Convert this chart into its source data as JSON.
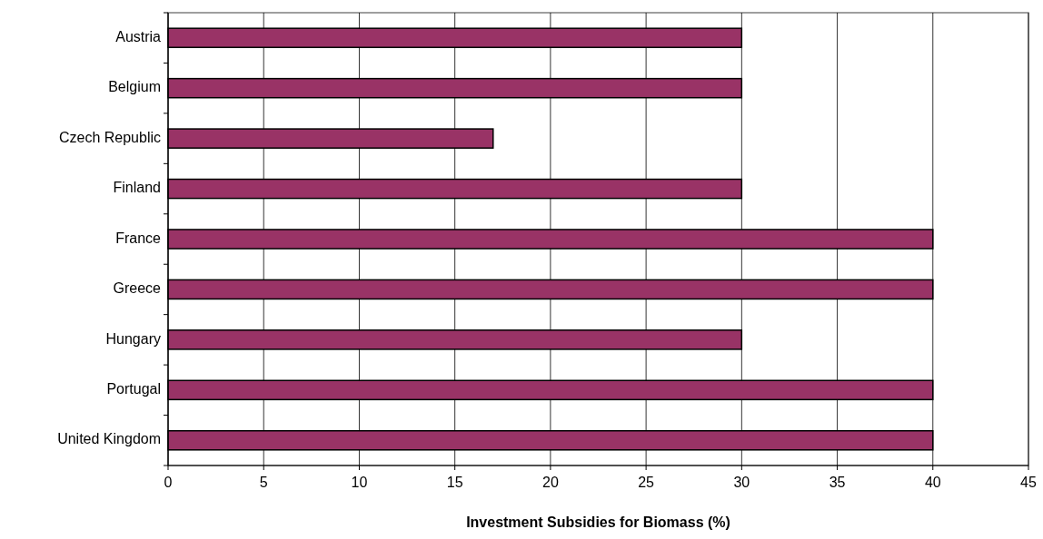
{
  "chart_data": {
    "type": "bar",
    "orientation": "horizontal",
    "xlabel": "Investment Subsidies for Biomass (%)",
    "categories": [
      "Austria",
      "Belgium",
      "Czech Republic",
      "Finland",
      "France",
      "Greece",
      "Hungary",
      "Portugal",
      "United Kingdom"
    ],
    "values": [
      30,
      30,
      17,
      30,
      40,
      40,
      30,
      40,
      40
    ],
    "color": "#993366",
    "xlim": [
      0,
      45
    ],
    "xticks": [
      0,
      5,
      10,
      15,
      20,
      25,
      30,
      35,
      40,
      45
    ],
    "grid": "x"
  }
}
